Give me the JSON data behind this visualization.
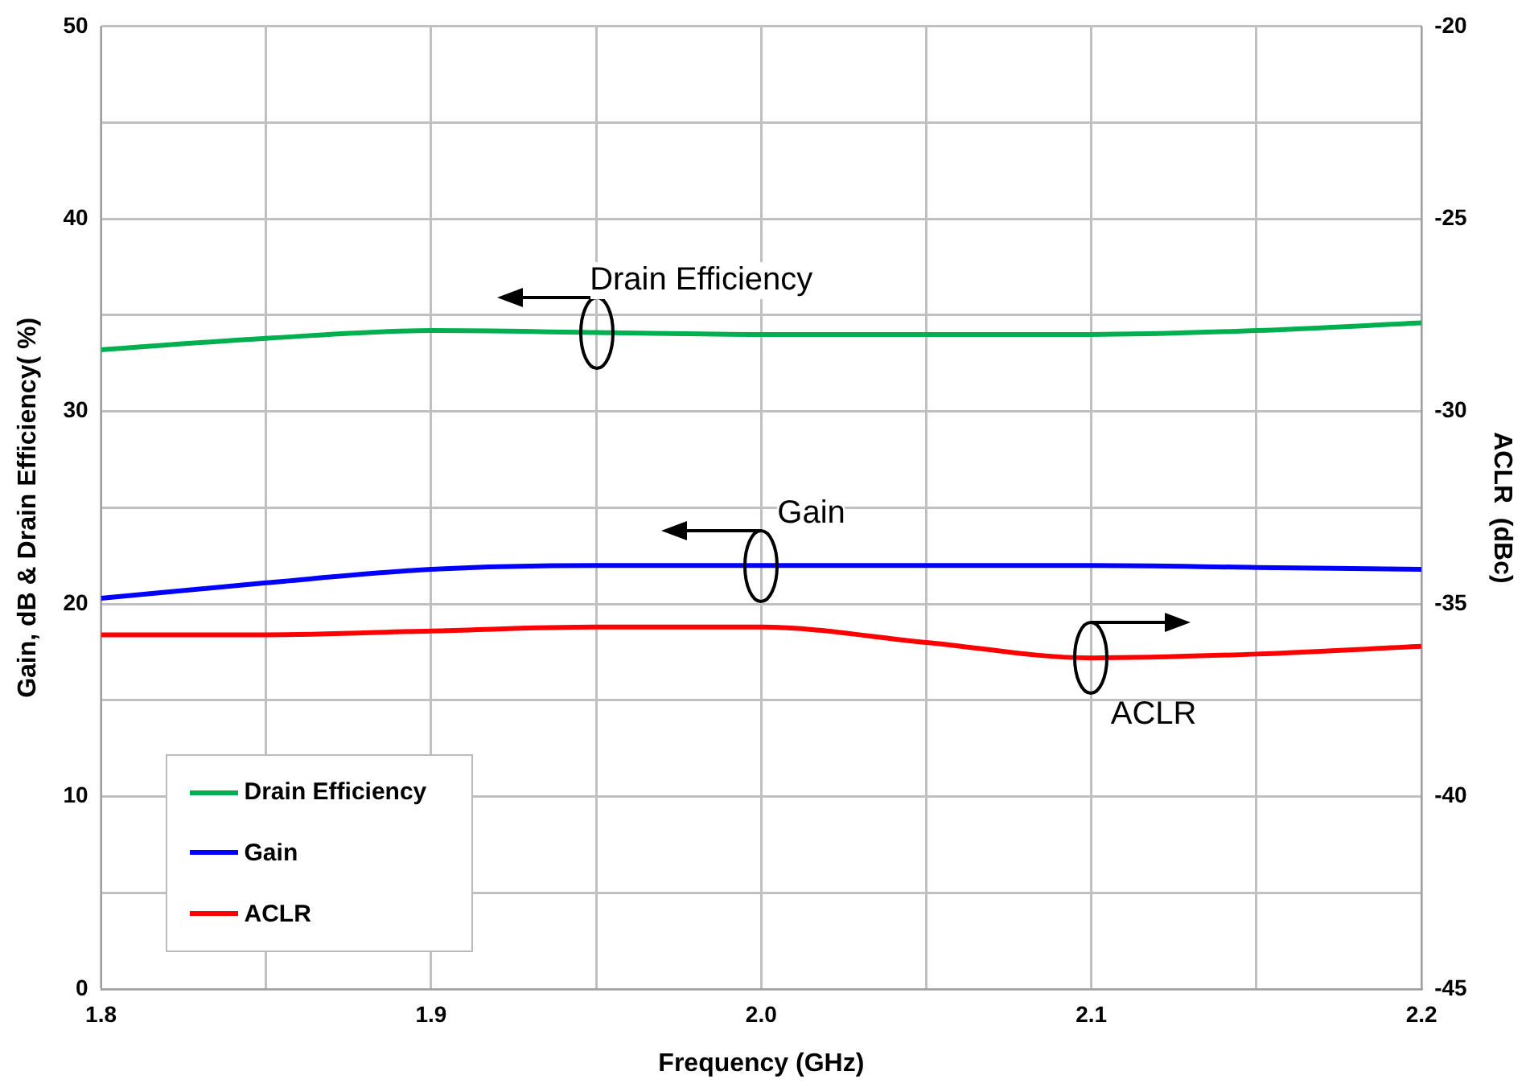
{
  "chart_data": {
    "type": "line",
    "xlabel": "Frequency (GHz)",
    "ylabel": "Gain, dB & Drain Efficiency( %)",
    "y2label": "ACLR  (dBc)",
    "x": [
      1.8,
      1.85,
      1.9,
      1.95,
      2.0,
      2.05,
      2.1,
      2.15,
      2.2
    ],
    "series": [
      {
        "name": "Drain Efficiency",
        "color": "#00b050",
        "values": [
          33.2,
          33.8,
          34.2,
          34.1,
          34.0,
          34.0,
          34.0,
          34.2,
          34.6
        ]
      },
      {
        "name": "Gain",
        "color": "#0000ff",
        "values": [
          20.3,
          21.1,
          21.8,
          22.0,
          22.0,
          22.0,
          22.0,
          21.9,
          21.8
        ]
      },
      {
        "name": "ACLR",
        "color": "#ff0000",
        "axis": "y2",
        "values": [
          -35.8,
          -35.8,
          -35.7,
          -35.6,
          -35.6,
          -36.0,
          -36.4,
          -36.3,
          -36.1
        ]
      }
    ],
    "xlim": [
      1.8,
      2.2
    ],
    "xticks": [
      1.8,
      {
        "value": 1.85,
        "label": null
      },
      1.9,
      {
        "value": 1.95,
        "label": null
      },
      {
        "value": 2,
        "label": "2.0"
      },
      {
        "value": 2.05,
        "label": null
      },
      2.1,
      {
        "value": 2.15,
        "label": null
      },
      2.2
    ],
    "ylim": [
      0,
      50
    ],
    "yticks": [
      0,
      {
        "value": 5,
        "label": null
      },
      10,
      {
        "value": 15,
        "label": null
      },
      20,
      {
        "value": 25,
        "label": null
      },
      30,
      {
        "value": 35,
        "label": null
      },
      40,
      {
        "value": 45,
        "label": null
      },
      50
    ],
    "y2lim": [
      -45,
      -20
    ],
    "y2ticks": [
      -45,
      -40,
      -35,
      -30,
      -25,
      -20
    ],
    "annotations": [
      {
        "text": "Drain Efficiency",
        "x": 1.95,
        "y": 34.1
      },
      {
        "text": "Gain",
        "x": 2.0,
        "y": 22.0
      },
      {
        "text": "ACLR",
        "x": 2.1,
        "y": 17.2
      }
    ],
    "grid": true,
    "legend": "bottom left",
    "marker": "none",
    "line_style": "solid"
  }
}
